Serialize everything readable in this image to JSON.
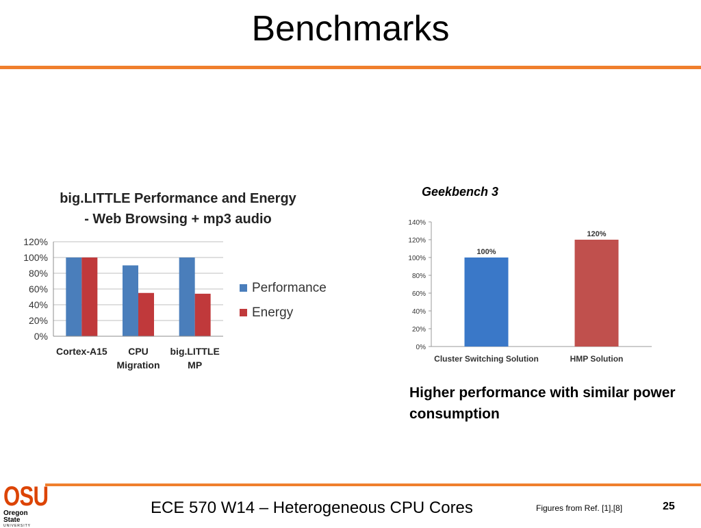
{
  "slide": {
    "title": "Benchmarks",
    "footer_center": "ECE 570 W14 – Heterogeneous CPU Cores",
    "footer_ref": "Figures from Ref. [1],[8]",
    "page_number": "25",
    "caption": "Higher performance with similar power consumption",
    "accent_color": "#f07f2d",
    "logo": {
      "text": "OSU",
      "name_line1": "Oregon State",
      "name_line2": "UNIVERSITY",
      "color": "#dc4405"
    }
  },
  "chart_data": [
    {
      "type": "bar",
      "title": [
        "big.LITTLE Performance and Energy",
        "- Web Browsing + mp3 audio"
      ],
      "categories": [
        [
          "Cortex-A15"
        ],
        [
          "CPU",
          "Migration"
        ],
        [
          "big.LITTLE",
          "MP"
        ]
      ],
      "series": [
        {
          "name": "Performance",
          "values": [
            100,
            90,
            100
          ],
          "color": "#4a7ebb"
        },
        {
          "name": "Energy",
          "values": [
            100,
            55,
            54
          ],
          "color": "#c0393b"
        }
      ],
      "ylim": [
        0,
        120
      ],
      "yticks": [
        "0%",
        "20%",
        "40%",
        "60%",
        "80%",
        "100%",
        "120%"
      ],
      "grid": true,
      "legend": "right"
    },
    {
      "type": "bar",
      "title": "Geekbench 3",
      "categories": [
        "Cluster Switching Solution",
        "HMP Solution"
      ],
      "values": [
        100,
        120
      ],
      "data_labels": [
        "100%",
        "120%"
      ],
      "colors": [
        "#3a78c8",
        "#c0504d"
      ],
      "ylim": [
        0,
        140
      ],
      "yticks": [
        "0%",
        "20%",
        "40%",
        "60%",
        "80%",
        "100%",
        "120%",
        "140%"
      ],
      "grid": false
    }
  ]
}
